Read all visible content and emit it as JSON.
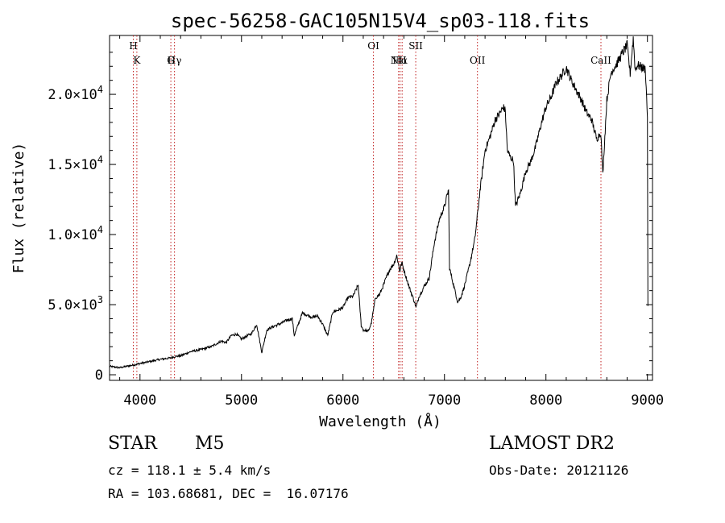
{
  "chart_data": {
    "type": "line",
    "title": "spec-56258-GAC105N15V4_sp03-118.fits",
    "xlabel": "Wavelength (Å)",
    "ylabel": "Flux (relative)",
    "xlim": [
      3700,
      9050
    ],
    "ylim": [
      -400,
      24200
    ],
    "grid": false,
    "x_ticks": [
      {
        "value": 4000,
        "label": "4000"
      },
      {
        "value": 5000,
        "label": "5000"
      },
      {
        "value": 6000,
        "label": "6000"
      },
      {
        "value": 7000,
        "label": "7000"
      },
      {
        "value": 8000,
        "label": "8000"
      },
      {
        "value": 9000,
        "label": "9000"
      }
    ],
    "y_ticks": [
      {
        "value": 0,
        "mantissa": "0",
        "exponent": ""
      },
      {
        "value": 5000,
        "mantissa": "5.0×10",
        "exponent": "3"
      },
      {
        "value": 10000,
        "mantissa": "1.0×10",
        "exponent": "4"
      },
      {
        "value": 15000,
        "mantissa": "1.5×10",
        "exponent": "4"
      },
      {
        "value": 20000,
        "mantissa": "2.0×10",
        "exponent": "4"
      }
    ],
    "series": [
      {
        "x": [
          3700,
          3800,
          3900,
          3940,
          3970,
          4000,
          4100,
          4200,
          4300,
          4340,
          4400,
          4500,
          4600,
          4700,
          4800,
          4850,
          4900,
          4950,
          5000,
          5100,
          5150,
          5200,
          5250,
          5300,
          5400,
          5450,
          5500,
          5520,
          5600,
          5700,
          5750,
          5800,
          5850,
          5900,
          5950,
          6000,
          6050,
          6100,
          6150,
          6180,
          6200,
          6250,
          6280,
          6320,
          6360,
          6400,
          6430,
          6460,
          6500,
          6530,
          6560,
          6580,
          6620,
          6660,
          6700,
          6720,
          6750,
          6800,
          6850,
          6900,
          6950,
          7000,
          7040,
          7050,
          7080,
          7100,
          7130,
          7160,
          7200,
          7250,
          7300,
          7350,
          7400,
          7450,
          7500,
          7550,
          7580,
          7600,
          7620,
          7650,
          7680,
          7700,
          7750,
          7800,
          7850,
          7900,
          7950,
          8000,
          8050,
          8100,
          8150,
          8200,
          8250,
          8300,
          8350,
          8400,
          8450,
          8500,
          8540,
          8560,
          8600,
          8640,
          8660,
          8700,
          8750,
          8800,
          8830,
          8860,
          8880,
          8900,
          8950,
          8980,
          9000,
          9005
        ],
        "y": [
          600,
          500,
          650,
          700,
          750,
          800,
          950,
          1100,
          1200,
          1300,
          1350,
          1650,
          1800,
          2000,
          2400,
          2300,
          2800,
          2900,
          2550,
          2950,
          3600,
          1600,
          3200,
          3400,
          3700,
          3900,
          4000,
          2800,
          4400,
          4100,
          4200,
          3600,
          2800,
          4500,
          4600,
          4800,
          5500,
          5600,
          6400,
          3500,
          3200,
          3100,
          3700,
          5500,
          5700,
          6400,
          7000,
          7500,
          7900,
          8500,
          7400,
          8000,
          7000,
          6100,
          5300,
          4800,
          5600,
          6300,
          6900,
          9400,
          11100,
          12000,
          13200,
          7600,
          6700,
          6100,
          5200,
          5500,
          6400,
          7900,
          9700,
          13100,
          16000,
          17000,
          18200,
          18700,
          19100,
          18800,
          16000,
          15500,
          15300,
          12000,
          13000,
          14500,
          15200,
          16300,
          17800,
          19100,
          19800,
          20800,
          21300,
          21900,
          21000,
          20300,
          19600,
          18700,
          18200,
          16800,
          17300,
          14300,
          19600,
          21500,
          21800,
          22200,
          22900,
          23500,
          21500,
          24000,
          21700,
          22100,
          21900,
          21800,
          18400,
          4900
        ]
      }
    ],
    "lines": [
      {
        "x": 3934,
        "label": "H",
        "row": 1
      },
      {
        "x": 3969,
        "label": "K",
        "row": 2
      },
      {
        "x": 4304,
        "label": "G",
        "row": 2
      },
      {
        "x": 4340,
        "label": "Hγ",
        "row": 2
      },
      {
        "x": 6300,
        "label": "OI",
        "row": 1
      },
      {
        "x": 6548,
        "label": "NII",
        "row": 2
      },
      {
        "x": 6563,
        "label": "Hα",
        "row": 2
      },
      {
        "x": 6583,
        "label": "",
        "row": 0
      },
      {
        "x": 6717,
        "label": "SII",
        "row": 1
      },
      {
        "x": 7325,
        "label": "OII",
        "row": 2
      },
      {
        "x": 8542,
        "label": "CaII",
        "row": 2
      }
    ]
  },
  "info": {
    "obj_type": "STAR",
    "subclass": "M5",
    "cz": "cz = 118.1 ± 5.4 km/s",
    "coords": "RA = 103.68681, DEC =  16.07176",
    "survey": "LAMOST DR2",
    "obs_date": "Obs-Date: 20121126"
  }
}
